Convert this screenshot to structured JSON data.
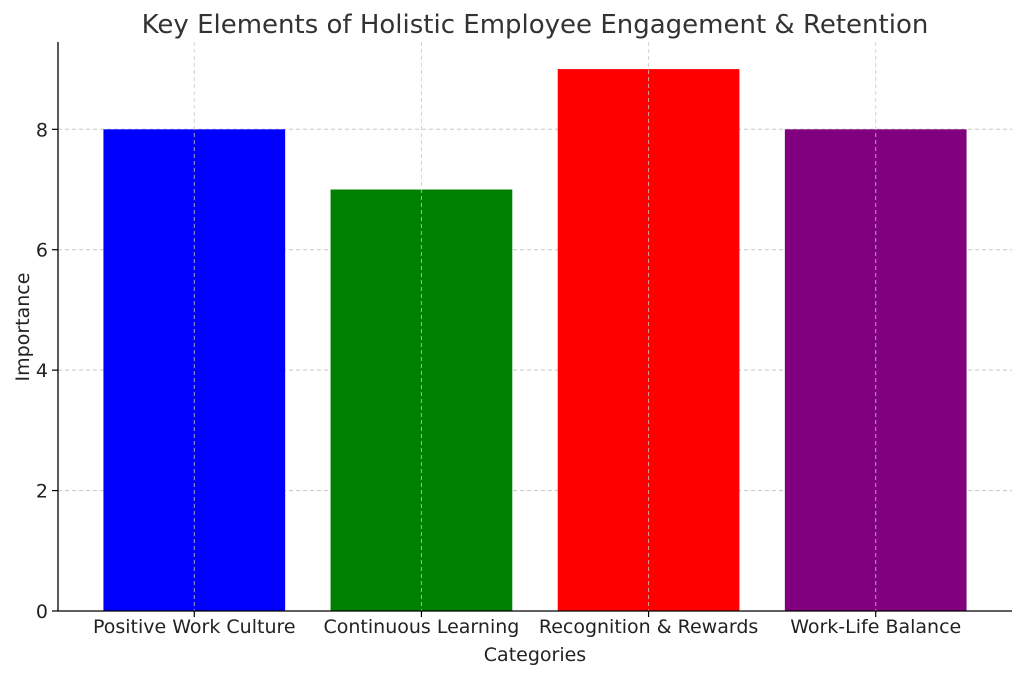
{
  "chart_data": {
    "type": "bar",
    "title": "Key Elements of Holistic Employee Engagement & Retention",
    "xlabel": "Categories",
    "ylabel": "Importance",
    "categories": [
      "Positive Work Culture",
      "Continuous Learning",
      "Recognition & Rewards",
      "Work-Life Balance"
    ],
    "values": [
      8,
      7,
      9,
      8
    ],
    "colors": [
      "#0000ff",
      "#008000",
      "#ff0000",
      "#800080"
    ],
    "ylim": [
      0,
      9.45
    ],
    "yticks": [
      0,
      2,
      4,
      6,
      8
    ],
    "grid": true,
    "legend": "none"
  }
}
